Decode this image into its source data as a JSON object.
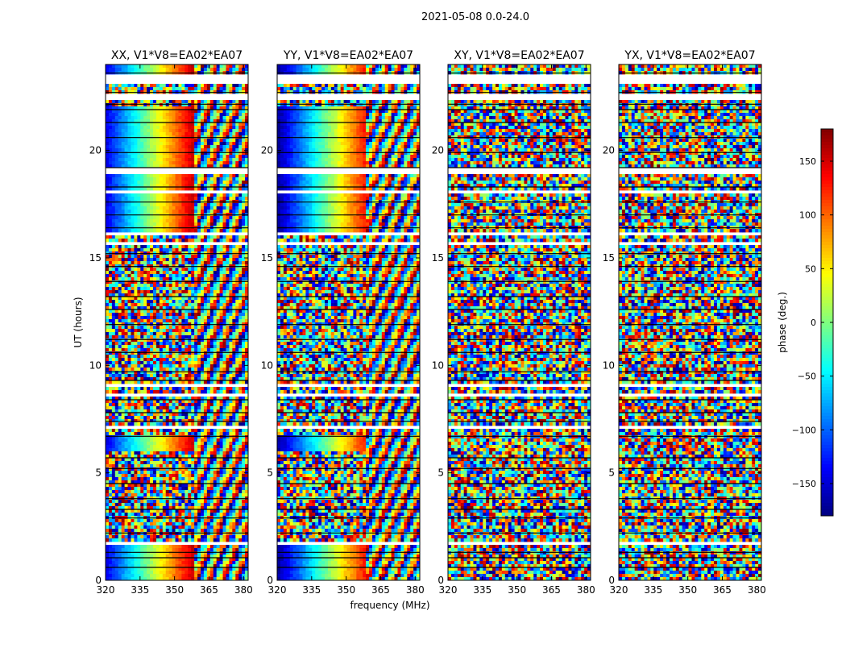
{
  "figure": {
    "suptitle": "2021-05-08 0.0-24.0"
  },
  "chart_data": {
    "type": "heatmap",
    "title": "2021-05-08 0.0-24.0",
    "panels": [
      {
        "title": "XX, V1*V8=EA02*EA07",
        "pol": "XX"
      },
      {
        "title": "YY, V1*V8=EA02*EA07",
        "pol": "YY"
      },
      {
        "title": "XY, V1*V8=EA02*EA07",
        "pol": "XY"
      },
      {
        "title": "YX, V1*V8=EA02*EA07",
        "pol": "YX"
      }
    ],
    "xlabel": "frequency (MHz)",
    "ylabel": "UT (hours)",
    "xlim": [
      320,
      382
    ],
    "ylim": [
      0,
      24
    ],
    "xticks": [
      320,
      335,
      350,
      365,
      380
    ],
    "xtick_labels": [
      "320",
      "335",
      "350",
      "365",
      "380"
    ],
    "yticks": [
      0,
      5,
      10,
      15,
      20
    ],
    "ytick_labels": [
      "0",
      "5",
      "10",
      "15",
      "20"
    ],
    "colorbar": {
      "label": "phase (deg.)",
      "range": [
        -180,
        180
      ],
      "ticks": [
        150,
        100,
        50,
        0,
        -50,
        -100,
        -150
      ],
      "tick_labels": [
        "150",
        "100",
        "50",
        "0",
        "−50",
        "−100",
        "−150"
      ],
      "colormap": "jet"
    },
    "flagged_gaps_hours": [
      [
        23.1,
        23.5
      ],
      [
        22.3,
        22.6
      ],
      [
        18.9,
        19.15
      ],
      [
        18.0,
        18.15
      ],
      [
        16.0,
        16.15
      ],
      [
        15.55,
        15.75
      ],
      [
        9.05,
        9.15
      ],
      [
        8.55,
        8.75
      ],
      [
        7.1,
        7.2
      ],
      [
        5.95,
        6.05
      ],
      [
        5.8,
        5.9
      ],
      [
        1.7,
        1.85
      ]
    ]
  }
}
